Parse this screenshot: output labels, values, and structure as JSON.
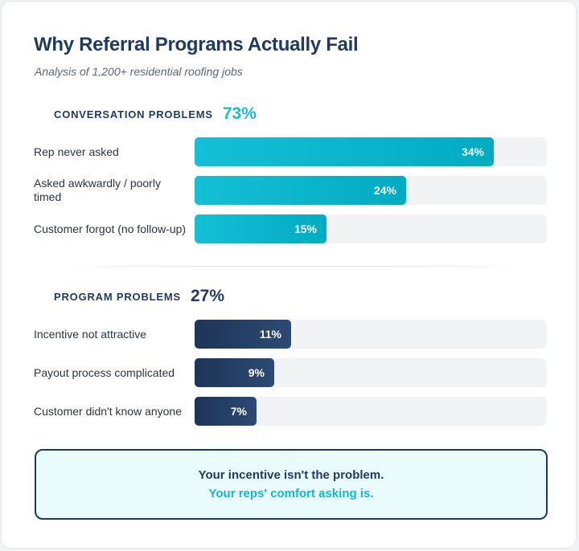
{
  "title": "Why Referral Programs Actually Fail",
  "subtitle": "Analysis of 1,200+ residential roofing jobs",
  "colors": {
    "conversation_accent": "#19bcd2",
    "program_accent": "#1f3a5f",
    "track": "#f2f3f5",
    "callout_bg": "#eafbfd"
  },
  "chart_data": {
    "type": "bar",
    "orientation": "horizontal",
    "title": "Why Referral Programs Actually Fail",
    "subtitle": "Analysis of 1,200+ residential roofing jobs",
    "xlim": [
      0,
      100
    ],
    "grid": false,
    "groups": [
      {
        "label": "CONVERSATION PROBLEMS",
        "total": "73%",
        "color": "#19bcd2",
        "items": [
          {
            "label": "Rep never asked",
            "value": 34,
            "display": "34%"
          },
          {
            "label": "Asked awkwardly / poorly timed",
            "value": 24,
            "display": "24%"
          },
          {
            "label": "Customer forgot (no follow-up)",
            "value": 15,
            "display": "15%"
          }
        ]
      },
      {
        "label": "PROGRAM PROBLEMS",
        "total": "27%",
        "color": "#1f3a5f",
        "items": [
          {
            "label": "Incentive not attractive",
            "value": 11,
            "display": "11%"
          },
          {
            "label": "Payout process complicated",
            "value": 9,
            "display": "9%"
          },
          {
            "label": "Customer didn't know anyone",
            "value": 7,
            "display": "7%"
          }
        ]
      }
    ]
  },
  "callout": {
    "line1": "Your incentive isn't the problem.",
    "line2": "Your reps' comfort asking is."
  }
}
